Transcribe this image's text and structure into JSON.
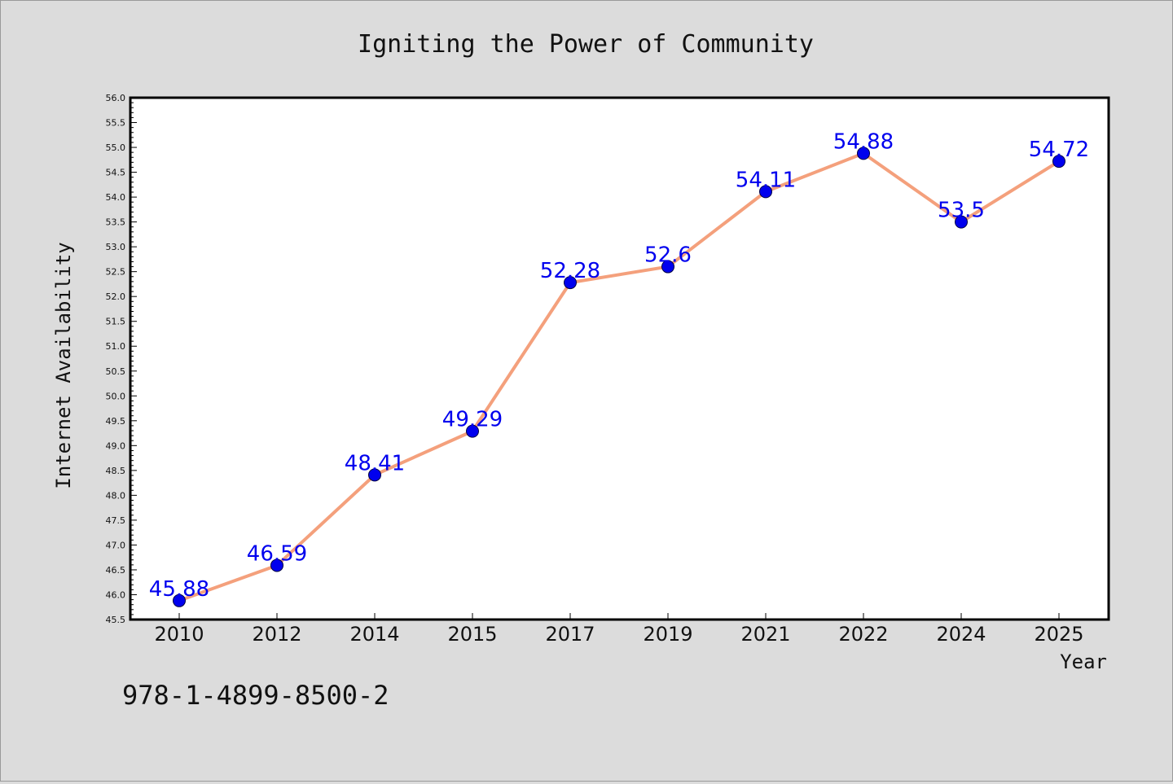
{
  "chart_data": {
    "type": "line",
    "title": "Igniting the Power of Community",
    "xlabel": "Year",
    "ylabel": "Internet Availability",
    "categories": [
      "2010",
      "2012",
      "2014",
      "2015",
      "2017",
      "2019",
      "2021",
      "2022",
      "2024",
      "2025"
    ],
    "series": [
      {
        "values": [
          45.88,
          46.59,
          48.41,
          49.29,
          52.28,
          52.6,
          54.11,
          54.88,
          53.5,
          54.72
        ],
        "labels": [
          "45.88",
          "46.59",
          "48.41",
          "49.29",
          "52.28",
          "52.6",
          "54.11",
          "54.88",
          "53.5",
          "54.72"
        ]
      }
    ],
    "ylim": [
      45.5,
      56.0
    ],
    "yticks": [
      "45.5",
      "46.0",
      "46.5",
      "47.0",
      "47.5",
      "48.0",
      "48.5",
      "49.0",
      "49.5",
      "50.0",
      "50.5",
      "51.0",
      "51.5",
      "52.0",
      "52.5",
      "53.0",
      "53.5",
      "54.0",
      "54.5",
      "55.0",
      "55.5",
      "56.0"
    ],
    "grid": false,
    "colors": {
      "line": "#f4a07c",
      "marker": "#0000ee",
      "data_label": "#0000ee",
      "background": "#dcdcdc",
      "plot_background": "#ffffff"
    }
  },
  "footer_text": "978-1-4899-8500-2"
}
